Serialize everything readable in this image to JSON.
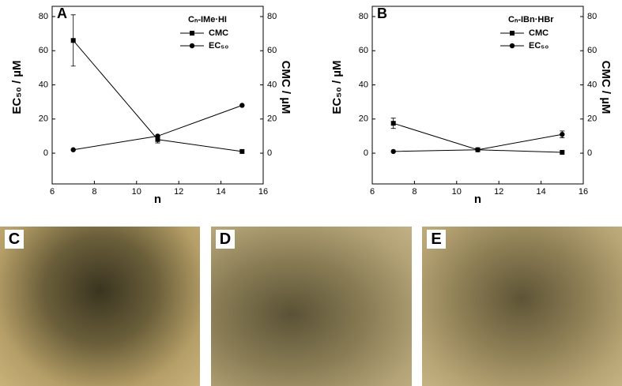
{
  "chart_data": [
    {
      "type": "line",
      "panel_label": "A",
      "legend_title": "Cₙ-IMe·HI",
      "xlabel": "n",
      "ylabel": "EC₅₀ / µM",
      "y2label": "CMC / µM",
      "x": [
        7,
        11,
        15
      ],
      "series": [
        {
          "name": "CMC",
          "color": "#000000",
          "marker": "square",
          "axis": "y2",
          "values": [
            66,
            8,
            1
          ],
          "errors": [
            15,
            2,
            null
          ]
        },
        {
          "name": "EC₅₀",
          "color": "#000000",
          "marker": "circle",
          "values": [
            2,
            10,
            28
          ]
        }
      ],
      "xlim": [
        6,
        16
      ],
      "xticks": [
        6,
        8,
        10,
        12,
        14,
        16
      ],
      "ylim": [
        -18,
        86
      ],
      "yticks": [
        0,
        20,
        40,
        60,
        80
      ],
      "y2lim": [
        -18,
        86
      ],
      "y2ticks": [
        0,
        20,
        40,
        60,
        80
      ],
      "legend": "upper right"
    },
    {
      "type": "line",
      "panel_label": "B",
      "legend_title": "Cₙ-IBn·HBr",
      "xlabel": "n",
      "ylabel": "EC₅₀ / µM",
      "y2label": "CMC / µM",
      "x": [
        7,
        11,
        15
      ],
      "series": [
        {
          "name": "CMC",
          "color": "#000000",
          "marker": "square",
          "axis": "y2",
          "values": [
            17.5,
            2,
            0.5
          ],
          "errors": [
            3,
            null,
            null
          ]
        },
        {
          "name": "EC₅₀",
          "color": "#000000",
          "marker": "circle",
          "values": [
            1,
            2,
            11
          ],
          "errors": [
            null,
            null,
            2
          ]
        }
      ],
      "xlim": [
        6,
        16
      ],
      "xticks": [
        6,
        8,
        10,
        12,
        14,
        16
      ],
      "ylim": [
        -18,
        86
      ],
      "yticks": [
        0,
        20,
        40,
        60,
        80
      ],
      "y2lim": [
        -18,
        86
      ],
      "y2ticks": [
        0,
        20,
        40,
        60,
        80
      ],
      "legend": "upper right"
    }
  ],
  "images": [
    {
      "label": "C"
    },
    {
      "label": "D"
    },
    {
      "label": "E"
    }
  ]
}
